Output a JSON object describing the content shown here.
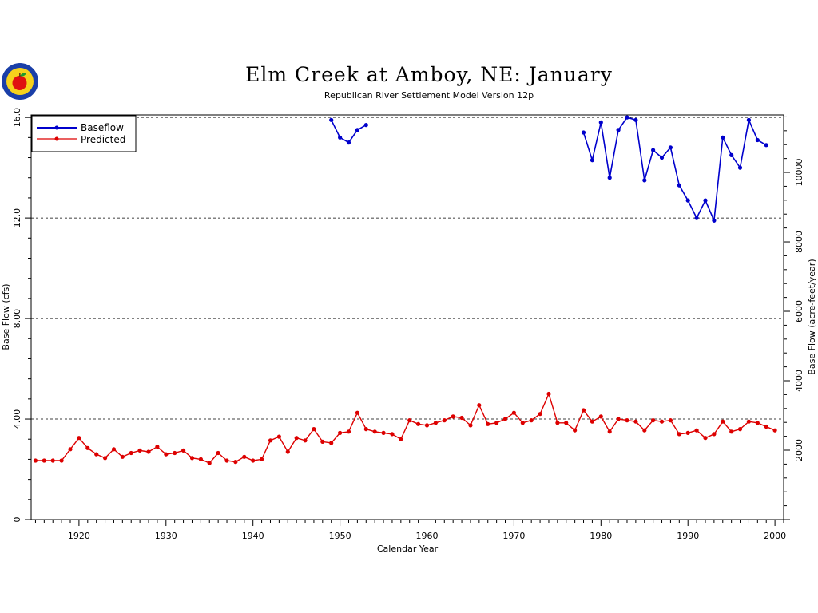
{
  "chart_data": {
    "type": "line",
    "title": "Elm Creek at Amboy, NE: January",
    "subtitle": "Republican River Settlement Model Version 12p",
    "xlabel": "Calendar Year",
    "ylabel": "Base Flow (cfs)",
    "y2label": "Base Flow (acre-feet/year)",
    "xlim": [
      1914.5,
      2001
    ],
    "ylim": [
      0,
      16.1
    ],
    "y2lim": [
      0,
      11656
    ],
    "x_ticks": [
      1920,
      1930,
      1940,
      1950,
      1960,
      1970,
      1980,
      1990,
      2000
    ],
    "y_ticks": [
      0,
      4,
      8,
      12,
      16
    ],
    "y_tick_labels": [
      "0",
      "4.00",
      "8.00",
      "12.0",
      "16.0"
    ],
    "y2_ticks": [
      2000,
      4000,
      6000,
      8000,
      10000
    ],
    "y2_tick_labels": [
      "2000",
      "4000",
      "6000",
      "8000",
      "10000"
    ],
    "grid": "horizontal dashed at 4, 8, 12, 16",
    "legend": "top-left",
    "series": [
      {
        "name": "Baseflow",
        "color": "#0000cc",
        "segments": [
          {
            "x": [
              1949,
              1950,
              1951,
              1952,
              1953
            ],
            "y": [
              15.9,
              15.2,
              15.0,
              15.5,
              15.7
            ]
          },
          {
            "x": [
              1978,
              1979,
              1980,
              1981,
              1982,
              1983,
              1984,
              1985,
              1986,
              1987,
              1988,
              1989,
              1990,
              1991,
              1992,
              1993,
              1994,
              1995,
              1996,
              1997,
              1998,
              1999
            ],
            "y": [
              15.4,
              14.3,
              15.8,
              13.6,
              15.5,
              16.0,
              15.9,
              13.5,
              14.7,
              14.4,
              14.8,
              13.3,
              12.7,
              12.0,
              12.7,
              11.9,
              15.2,
              14.5,
              14.0,
              15.9,
              15.1,
              14.9
            ]
          }
        ]
      },
      {
        "name": "Predicted",
        "color": "#dd0000",
        "segments": [
          {
            "x": [
              1915,
              1916,
              1917,
              1918,
              1919,
              1920,
              1921,
              1922,
              1923,
              1924,
              1925,
              1926,
              1927,
              1928,
              1929,
              1930,
              1931,
              1932,
              1933,
              1934,
              1935,
              1936,
              1937,
              1938,
              1939,
              1940,
              1941,
              1942,
              1943,
              1944,
              1945,
              1946,
              1947,
              1948,
              1949,
              1950,
              1951,
              1952,
              1953,
              1954,
              1955,
              1956,
              1957,
              1958,
              1959,
              1960,
              1961,
              1962,
              1963,
              1964,
              1965,
              1966,
              1967,
              1968,
              1969,
              1970,
              1971,
              1972,
              1973,
              1974,
              1975,
              1976,
              1977,
              1978,
              1979,
              1980,
              1981,
              1982,
              1983,
              1984,
              1985,
              1986,
              1987,
              1988,
              1989,
              1990,
              1991,
              1992,
              1993,
              1994,
              1995,
              1996,
              1997,
              1998,
              1999,
              2000
            ],
            "y": [
              2.35,
              2.35,
              2.35,
              2.35,
              2.8,
              3.25,
              2.85,
              2.6,
              2.45,
              2.8,
              2.5,
              2.65,
              2.75,
              2.7,
              2.9,
              2.6,
              2.65,
              2.75,
              2.45,
              2.4,
              2.25,
              2.65,
              2.35,
              2.3,
              2.5,
              2.35,
              2.4,
              3.15,
              3.3,
              2.7,
              3.25,
              3.15,
              3.6,
              3.1,
              3.05,
              3.45,
              3.5,
              4.25,
              3.6,
              3.5,
              3.45,
              3.4,
              3.2,
              3.95,
              3.8,
              3.75,
              3.85,
              3.95,
              4.1,
              4.05,
              3.75,
              4.55,
              3.8,
              3.85,
              4.0,
              4.25,
              3.85,
              3.95,
              4.2,
              5.0,
              3.85,
              3.85,
              3.55,
              4.35,
              3.9,
              4.1,
              3.5,
              4.0,
              3.95,
              3.9,
              3.55,
              3.95,
              3.9,
              3.95,
              3.4,
              3.45,
              3.55,
              3.25,
              3.4,
              3.9,
              3.5,
              3.6,
              3.9,
              3.85,
              3.7,
              3.55
            ]
          }
        ]
      }
    ]
  }
}
